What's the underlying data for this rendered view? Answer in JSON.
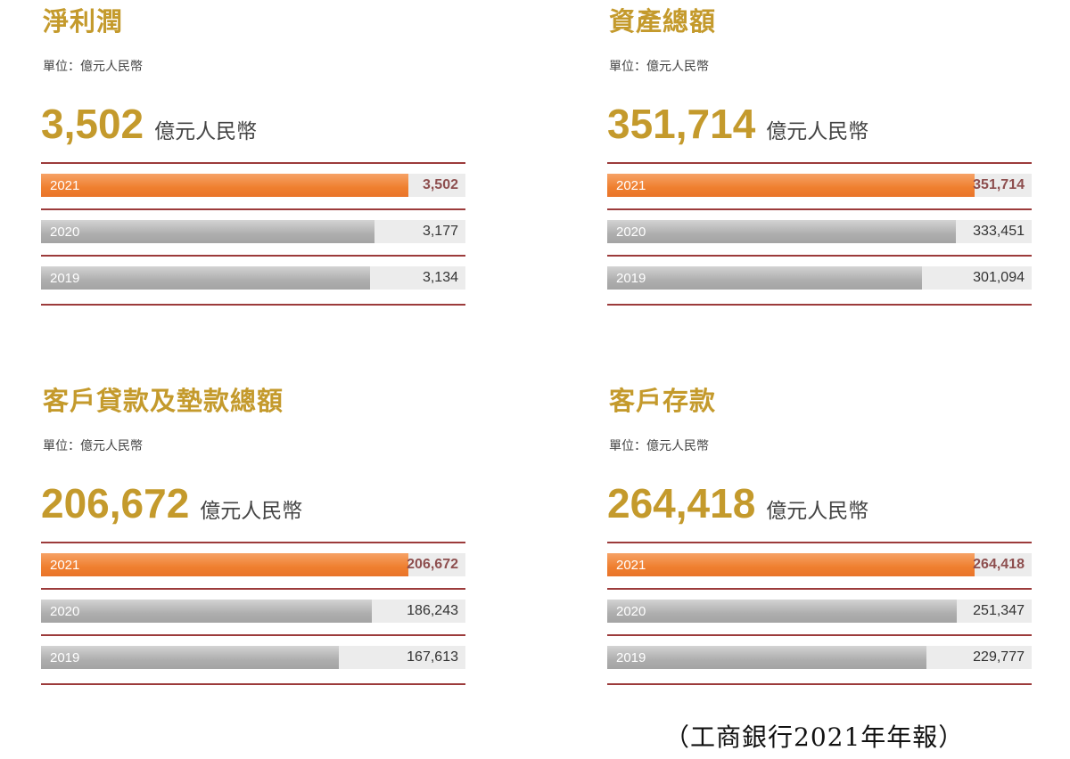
{
  "unit_label": "單位：億元人民幣",
  "headline_unit": "億元人民幣",
  "source": "（工商銀行2021年年報）",
  "colors": {
    "title": "#c49a2c",
    "current_bar": "#ef7f2f",
    "past_bar": "#aeaeae",
    "rule": "#9c3b3b"
  },
  "chart_data": [
    {
      "type": "bar",
      "title": "淨利潤",
      "headline": "3,502",
      "categories": [
        "2021",
        "2020",
        "2019"
      ],
      "values": [
        3502,
        3177,
        3134
      ],
      "value_labels": [
        "3,502",
        "3,177",
        "3,134"
      ]
    },
    {
      "type": "bar",
      "title": "資產總額",
      "headline": "351,714",
      "categories": [
        "2021",
        "2020",
        "2019"
      ],
      "values": [
        351714,
        333451,
        301094
      ],
      "value_labels": [
        "351,714",
        "333,451",
        "301,094"
      ]
    },
    {
      "type": "bar",
      "title": "客戶貸款及墊款總額",
      "headline": "206,672",
      "categories": [
        "2021",
        "2020",
        "2019"
      ],
      "values": [
        206672,
        186243,
        167613
      ],
      "value_labels": [
        "206,672",
        "186,243",
        "167,613"
      ]
    },
    {
      "type": "bar",
      "title": "客戶存款",
      "headline": "264,418",
      "categories": [
        "2021",
        "2020",
        "2019"
      ],
      "values": [
        264418,
        251347,
        229777
      ],
      "value_labels": [
        "264,418",
        "251,347",
        "229,777"
      ]
    }
  ]
}
